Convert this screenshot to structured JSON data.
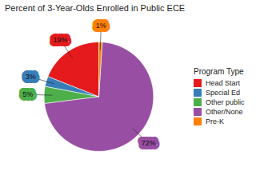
{
  "chart_data": {
    "type": "pie",
    "title": "Percent of 3-Year-Olds Enrolled in Public ECE",
    "legend_title": "Program Type",
    "categories": [
      "Head Start",
      "Special Ed",
      "Other public",
      "Other/None",
      "Pre-K"
    ],
    "values": [
      19,
      3,
      5,
      72,
      1
    ],
    "value_labels": [
      "19%",
      "3%",
      "5%",
      "72%",
      "1%"
    ],
    "colors": [
      "#e41a1c",
      "#377eb8",
      "#4daf4a",
      "#984ea3",
      "#ff7f00"
    ],
    "data_labels": true,
    "legend": "right"
  }
}
